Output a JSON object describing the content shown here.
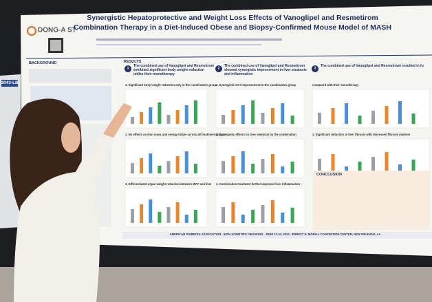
{
  "poster": {
    "logo": "DONG-A ST",
    "title": [
      "Synergistic Hepatoprotective and Weight Loss Effects of Vanoglipel and Resmetirom",
      "Combination Therapy in a Diet-Induced Obese and Biopsy-Confirmed Mouse Model of MASH"
    ],
    "board_label": "3043-LB",
    "background_heading": "BACKGROUND",
    "results_heading": "RESULTS",
    "panels": [
      {
        "number": "1",
        "heading": "The combined use of Vanoglipel and Resmetirom exhibited significant body weight reduction unlike their monotherapy",
        "subheadings": [
          "1. Significant body weight reduction only in the combination group",
          "2. No effects on lean mass and energy intake across all treatment groups",
          "3. Differentiated organ weight reduction between WAT and liver"
        ]
      },
      {
        "number": "2",
        "heading": "The combined use of Vanoglipel and Resmetirom showed synergistic improvement in liver steatosis and inflammation",
        "subheadings": [
          "1. Synergistic NAS improvement in the combination group",
          "2. Synergistic effects on liver steatosis by the combination",
          "3. Combination treatment further improved liver inflammation"
        ]
      },
      {
        "number": "3",
        "heading": "The combined use of Vanoglipel and Resmetirom resulted in fu",
        "subheadings": [
          "compared with their monotherapy",
          "1. Significant reduction in liver fibrosis with decreased fibrosis markers"
        ]
      }
    ],
    "conclusion_heading": "CONCLUSION",
    "footer": "AMERICAN DIABETES ASSOCIATION · 84TH SCIENTIFIC SESSIONS · JUNE 21-24, 2024 · ERNEST N. MORIAL CONVENTION CENTER, NEW ORLEANS, LA"
  }
}
